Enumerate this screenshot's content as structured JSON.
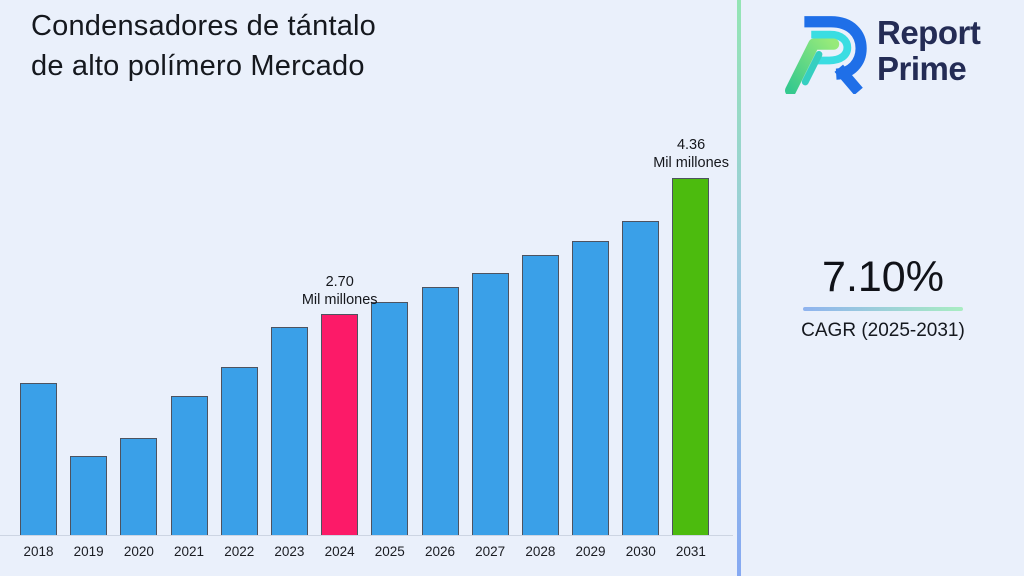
{
  "title": "Condensadores de tántalo de alto polímero Mercado",
  "logo": {
    "name": "Report Prime",
    "line1": "Report",
    "line2": "Prime"
  },
  "cagr": {
    "value": "7.10%",
    "label": "CAGR (2025-2031)"
  },
  "chart_data": {
    "type": "bar",
    "title": "Condensadores de tántalo de alto polímero Mercado",
    "unit": "Mil millones",
    "categories": [
      "2018",
      "2019",
      "2020",
      "2021",
      "2022",
      "2023",
      "2024",
      "2025",
      "2026",
      "2027",
      "2028",
      "2029",
      "2030",
      "2031"
    ],
    "values": [
      1.86,
      0.96,
      1.18,
      1.69,
      2.05,
      2.54,
      2.7,
      2.84,
      3.02,
      3.2,
      3.42,
      3.59,
      3.83,
      4.36
    ],
    "ylim": [
      0,
      4.36
    ],
    "grid": false,
    "legend": "none",
    "xlabel": "",
    "ylabel": "",
    "bar_colors": [
      "#3AA0E8",
      "#3AA0E8",
      "#3AA0E8",
      "#3AA0E8",
      "#3AA0E8",
      "#3AA0E8",
      "#FC1A68",
      "#3AA0E8",
      "#3AA0E8",
      "#3AA0E8",
      "#3AA0E8",
      "#3AA0E8",
      "#3AA0E8",
      "#4CBB0E"
    ],
    "annotations": [
      {
        "category": "2024",
        "index": 6,
        "value_label": "2.70",
        "unit_label": "Mil millones"
      },
      {
        "category": "2031",
        "index": 13,
        "value_label": "4.36",
        "unit_label": "Mil millones"
      }
    ]
  },
  "colors": {
    "background": "#EAF0FB",
    "bar_default": "#3AA0E8",
    "bar_highlight_2024": "#FC1A68",
    "bar_highlight_2031": "#4CBB0E",
    "bar_border": "#4D5360",
    "divider_top": "#94E5B4",
    "divider_bottom": "#86A9F2",
    "underline_left": "#8FB3EF",
    "underline_right": "#A9EDC2",
    "brand_navy": "#242C55",
    "brand_blue": "#1F6FE8",
    "brand_cyan": "#3ADDE2",
    "brand_green_light": "#97EA7A",
    "brand_green_dark": "#35C98E"
  }
}
